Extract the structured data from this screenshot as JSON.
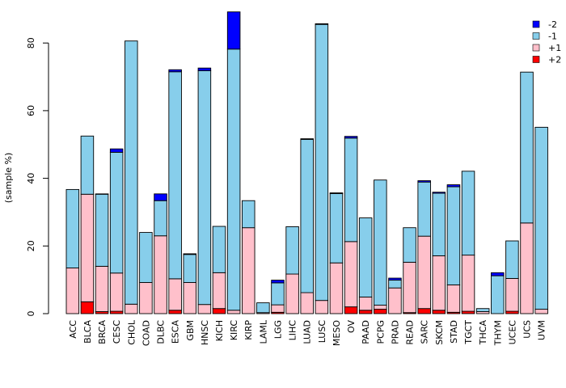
{
  "chart_data": {
    "type": "bar",
    "stacking": "diverging-stacked",
    "title": "",
    "xlabel": "",
    "ylabel": "(sample %)",
    "ylim": [
      0,
      90
    ],
    "yticks": [
      0,
      20,
      40,
      60,
      80
    ],
    "categories": [
      "ACC",
      "BLCA",
      "BRCA",
      "CESC",
      "CHOL",
      "COAD",
      "DLBC",
      "ESCA",
      "GBM",
      "HNSC",
      "KICH",
      "KIRC",
      "KIRP",
      "LAML",
      "LGG",
      "LIHC",
      "LUAD",
      "LUSC",
      "MESO",
      "OV",
      "PAAD",
      "PCPG",
      "PRAD",
      "READ",
      "SARC",
      "SKCM",
      "STAD",
      "TGCT",
      "THCA",
      "THYM",
      "UCEC",
      "UCS",
      "UVM"
    ],
    "series": [
      {
        "name": "+2",
        "color": "#ff0000",
        "values": [
          0,
          3.5,
          0.6,
          0.7,
          0,
          0,
          0,
          1.0,
          0,
          0,
          1.5,
          0,
          0,
          0,
          0.4,
          0,
          0,
          0,
          0,
          2.0,
          1.0,
          1.3,
          0,
          0.3,
          1.5,
          1.0,
          0.4,
          0.7,
          0,
          0,
          0.7,
          0,
          0
        ]
      },
      {
        "name": "+1",
        "color": "#ffc0cb",
        "values": [
          13.5,
          31.8,
          13.4,
          11.3,
          2.8,
          9.2,
          23.0,
          9.3,
          9.2,
          2.7,
          10.6,
          1.0,
          25.4,
          0.3,
          2.2,
          11.7,
          6.2,
          3.9,
          15.0,
          19.3,
          3.9,
          1.2,
          7.6,
          14.9,
          21.4,
          16.1,
          8.1,
          16.6,
          0.6,
          0,
          9.7,
          26.8,
          1.3
        ]
      },
      {
        "name": "-1",
        "color": "#87ceeb",
        "values": [
          23.2,
          17.2,
          21.3,
          35.7,
          77.8,
          14.8,
          10.4,
          61.2,
          8.3,
          69.1,
          13.7,
          77.2,
          8.0,
          2.9,
          6.5,
          14.0,
          45.3,
          81.6,
          20.5,
          30.6,
          23.4,
          37.0,
          2.3,
          10.2,
          16.0,
          18.5,
          29.0,
          24.8,
          0.9,
          11.2,
          11.1,
          44.6,
          53.8
        ]
      },
      {
        "name": "-2",
        "color": "#0000ff",
        "values": [
          0,
          0,
          0.1,
          1.0,
          0,
          0,
          2.0,
          0.6,
          0.2,
          0.8,
          0,
          11.0,
          0,
          0,
          0.8,
          0,
          0.2,
          0.2,
          0.2,
          0.5,
          0,
          0,
          0.6,
          0,
          0.4,
          0.3,
          0.6,
          0,
          0,
          0.9,
          0,
          0,
          0
        ]
      }
    ],
    "legend_position": "top-right",
    "grid": false
  }
}
